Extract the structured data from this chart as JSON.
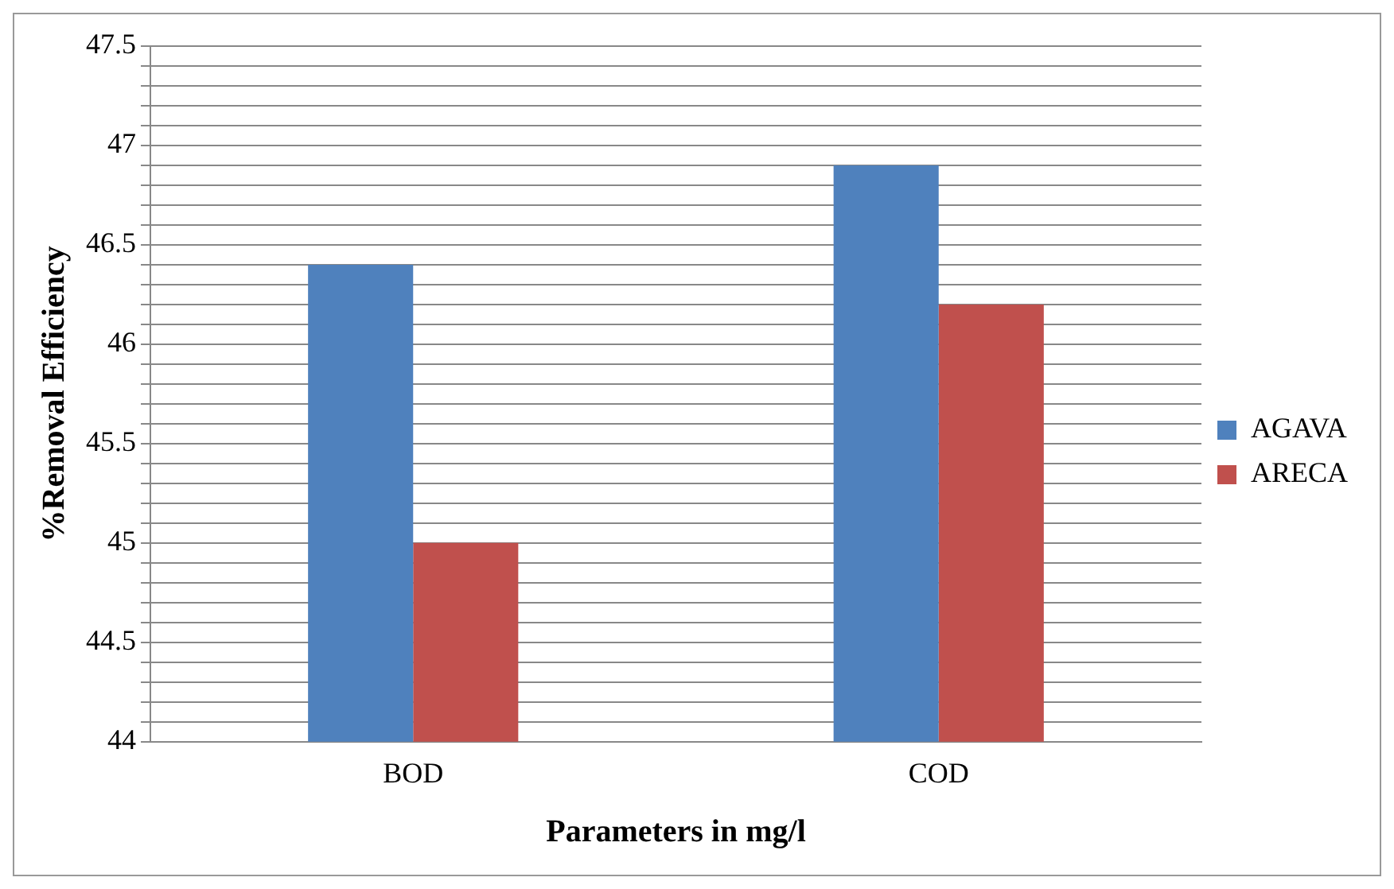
{
  "chart_data": {
    "type": "bar",
    "xlabel": "Parameters in mg/l",
    "ylabel": "%Removal Efficiency",
    "categories": [
      "BOD",
      "COD"
    ],
    "series": [
      {
        "name": "AGAVA",
        "color": "#4f81bd",
        "values": [
          46.4,
          46.9
        ]
      },
      {
        "name": "ARECA",
        "color": "#c0504d",
        "values": [
          45.0,
          46.2
        ]
      }
    ],
    "ylim": [
      44,
      47.5
    ],
    "yticks": [
      44,
      {
        "value": 44.1,
        "label": null
      },
      {
        "value": 44.2,
        "label": null
      },
      {
        "value": 44.3,
        "label": null
      },
      {
        "value": 44.4,
        "label": null
      },
      44.5,
      {
        "value": 44.6,
        "label": null
      },
      {
        "value": 44.7,
        "label": null
      },
      {
        "value": 44.8,
        "label": null
      },
      {
        "value": 44.9,
        "label": null
      },
      45,
      {
        "value": 45.1,
        "label": null
      },
      {
        "value": 45.2,
        "label": null
      },
      {
        "value": 45.3,
        "label": null
      },
      {
        "value": 45.4,
        "label": null
      },
      45.5,
      {
        "value": 45.6,
        "label": null
      },
      {
        "value": 45.7,
        "label": null
      },
      {
        "value": 45.8,
        "label": null
      },
      {
        "value": 45.9,
        "label": null
      },
      46,
      {
        "value": 46.1,
        "label": null
      },
      {
        "value": 46.2,
        "label": null
      },
      {
        "value": 46.3,
        "label": null
      },
      {
        "value": 46.4,
        "label": null
      },
      46.5,
      {
        "value": 46.6,
        "label": null
      },
      {
        "value": 46.7,
        "label": null
      },
      {
        "value": 46.8,
        "label": null
      },
      {
        "value": 46.9,
        "label": null
      },
      47,
      {
        "value": 47.1,
        "label": null
      },
      {
        "value": 47.2,
        "label": null
      },
      {
        "value": 47.3,
        "label": null
      },
      {
        "value": 47.4,
        "label": null
      },
      47.5
    ],
    "grid": "y",
    "legend": "right"
  }
}
